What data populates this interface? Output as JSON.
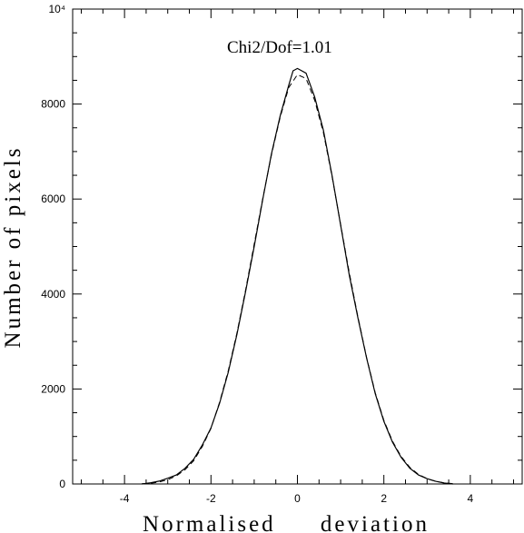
{
  "chart_data": {
    "type": "line",
    "xlabel": "Normalised deviation",
    "ylabel": "Number of pixels",
    "annotation": "Chi2/Dof=1.01",
    "xlim": [
      -5.2,
      5.2
    ],
    "ylim": [
      0,
      10000
    ],
    "x_ticks": [
      -4,
      -2,
      0,
      2,
      4
    ],
    "y_ticks": [
      0,
      2000,
      4000,
      6000,
      8000,
      10000
    ],
    "y_tick_labels": [
      "0",
      "2000",
      "4000",
      "6000",
      "8000",
      "10⁴"
    ],
    "grid": false,
    "series": [
      {
        "style": "solid",
        "x": [
          -3.6,
          -3.4,
          -3.2,
          -3.0,
          -2.8,
          -2.6,
          -2.4,
          -2.2,
          -2.0,
          -1.8,
          -1.6,
          -1.4,
          -1.2,
          -1.0,
          -0.8,
          -0.6,
          -0.4,
          -0.2,
          -0.1,
          0.0,
          0.2,
          0.4,
          0.6,
          0.8,
          1.0,
          1.2,
          1.4,
          1.6,
          1.8,
          2.0,
          2.2,
          2.4,
          2.6,
          2.8,
          3.0,
          3.2,
          3.4,
          3.6
        ],
        "values": [
          0,
          25,
          60,
          120,
          190,
          330,
          520,
          820,
          1180,
          1700,
          2350,
          3150,
          4050,
          5000,
          6000,
          6950,
          7750,
          8400,
          8700,
          8750,
          8650,
          8150,
          7450,
          6500,
          5450,
          4400,
          3500,
          2650,
          1900,
          1320,
          880,
          560,
          330,
          190,
          110,
          55,
          20,
          0
        ]
      },
      {
        "style": "dashed",
        "x": [
          -3.6,
          -3.4,
          -3.2,
          -3.0,
          -2.8,
          -2.6,
          -2.4,
          -2.2,
          -2.0,
          -1.8,
          -1.6,
          -1.4,
          -1.2,
          -1.0,
          -0.8,
          -0.6,
          -0.4,
          -0.2,
          0.0,
          0.2,
          0.4,
          0.6,
          0.8,
          1.0,
          1.2,
          1.4,
          1.6,
          1.8,
          2.0,
          2.2,
          2.4,
          2.6,
          2.8,
          3.0,
          3.2,
          3.4,
          3.6
        ],
        "values": [
          5,
          15,
          40,
          90,
          170,
          300,
          490,
          790,
          1170,
          1720,
          2380,
          3180,
          4080,
          5050,
          6020,
          6930,
          7720,
          8350,
          8620,
          8540,
          8080,
          7400,
          6480,
          5460,
          4450,
          3520,
          2660,
          1920,
          1340,
          900,
          580,
          350,
          200,
          110,
          55,
          25,
          5
        ]
      }
    ]
  }
}
